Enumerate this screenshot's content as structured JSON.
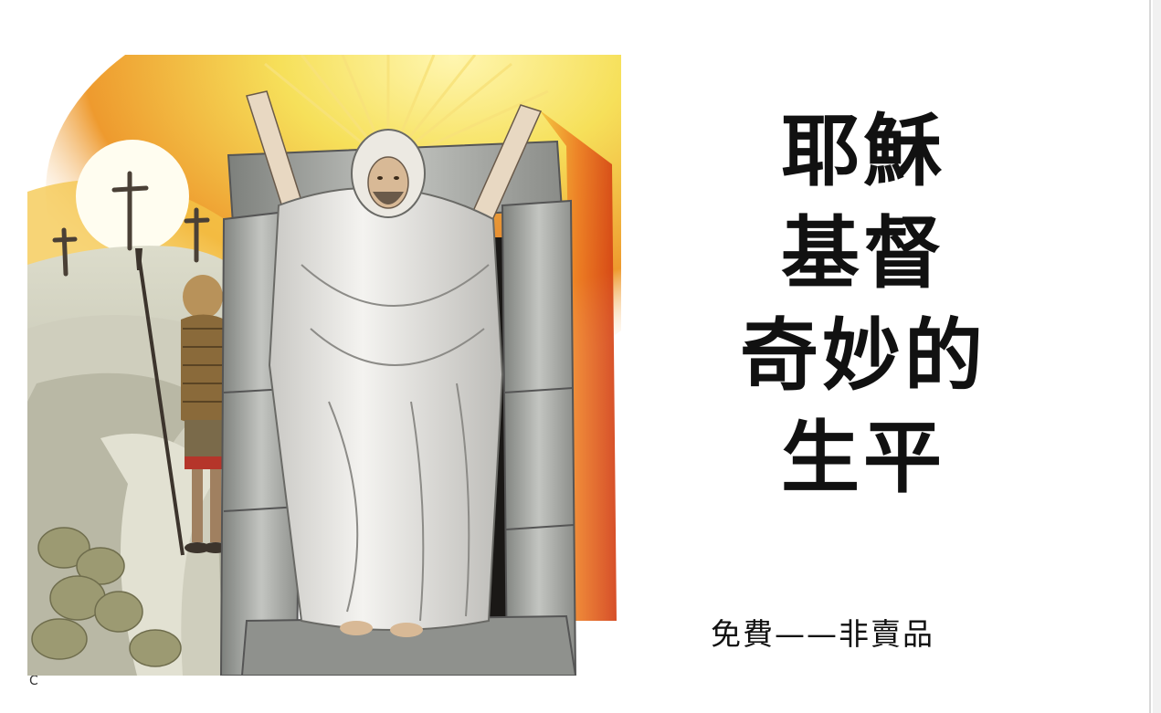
{
  "title": {
    "lines": [
      "耶穌",
      "基督",
      "奇妙的",
      "生平"
    ]
  },
  "footer": "免費——非賣品",
  "corner_mark": "C",
  "illustration": {
    "subject": "resurrection-scene",
    "colors": {
      "sky_yellow": "#f6e05a",
      "sky_orange": "#e86a1e",
      "sun": "#fffdf0",
      "robe": "#eceae6",
      "stone": "#9a9c98",
      "tomb_dark": "#1a1816",
      "ground": "#c9c7b5"
    }
  }
}
